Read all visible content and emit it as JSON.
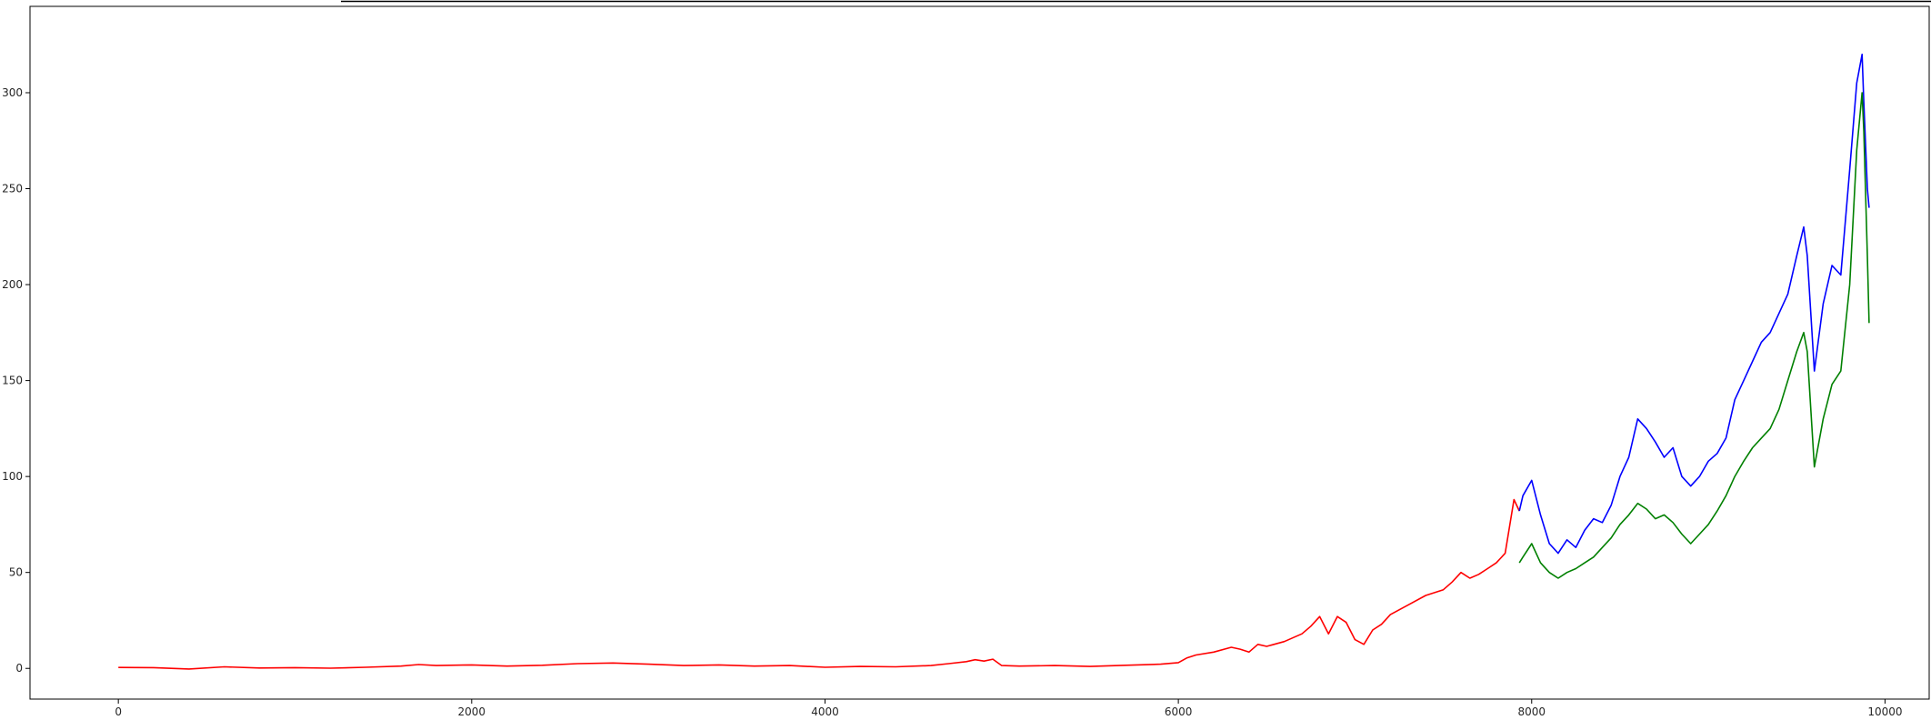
{
  "chart_data": {
    "type": "line",
    "title": "",
    "xlabel": "",
    "ylabel": "",
    "xlim": [
      -500,
      10250
    ],
    "ylim": [
      -16,
      345
    ],
    "xticks": [
      0,
      2000,
      4000,
      6000,
      8000,
      10000
    ],
    "yticks": [
      0,
      50,
      100,
      150,
      200,
      250,
      300
    ],
    "grid": false,
    "legend": "none",
    "series": [
      {
        "color": "#ff0000",
        "x": [
          0,
          200,
          400,
          600,
          800,
          1000,
          1200,
          1400,
          1600,
          1700,
          1800,
          2000,
          2200,
          2400,
          2600,
          2800,
          3000,
          3200,
          3400,
          3600,
          3800,
          4000,
          4200,
          4400,
          4600,
          4700,
          4800,
          4850,
          4900,
          4950,
          5000,
          5100,
          5300,
          5500,
          5700,
          5900,
          6000,
          6050,
          6100,
          6200,
          6300,
          6350,
          6400,
          6450,
          6500,
          6600,
          6700,
          6750,
          6800,
          6850,
          6900,
          6950,
          7000,
          7050,
          7100,
          7150,
          7200,
          7300,
          7400,
          7500,
          7550,
          7600,
          7650,
          7700,
          7750,
          7800,
          7850,
          7900,
          7930
        ],
        "values": [
          0.5,
          0.4,
          -0.3,
          0.8,
          0.2,
          0.4,
          0.1,
          0.6,
          1.2,
          2.0,
          1.5,
          1.8,
          1.2,
          1.6,
          2.5,
          2.8,
          2.2,
          1.5,
          1.8,
          1.2,
          1.5,
          0.6,
          1.0,
          0.8,
          1.5,
          2.5,
          3.5,
          4.5,
          3.8,
          4.8,
          1.5,
          1.2,
          1.5,
          1.0,
          1.6,
          2.2,
          3.0,
          5.5,
          7.0,
          8.5,
          11.0,
          10.0,
          8.5,
          12.5,
          11.5,
          14.0,
          18.0,
          22.0,
          27.0,
          18.0,
          27.0,
          24.0,
          15.0,
          12.5,
          20.0,
          23.0,
          28.0,
          33.0,
          38.0,
          41.0,
          45.0,
          50.0,
          47.0,
          49.0,
          52.0,
          55.0,
          60.0,
          88.0,
          82.0
        ]
      },
      {
        "color": "#0000ff",
        "x": [
          7930,
          7950,
          8000,
          8050,
          8100,
          8150,
          8200,
          8250,
          8300,
          8350,
          8400,
          8450,
          8500,
          8550,
          8600,
          8650,
          8700,
          8750,
          8800,
          8850,
          8900,
          8950,
          9000,
          9050,
          9100,
          9150,
          9200,
          9250,
          9300,
          9350,
          9400,
          9450,
          9500,
          9540,
          9560,
          9600,
          9650,
          9700,
          9750,
          9800,
          9840,
          9870,
          9880,
          9900,
          9910
        ],
        "values": [
          82.0,
          90.0,
          98.0,
          80.0,
          65.0,
          60.0,
          67.0,
          63.0,
          72.0,
          78.0,
          76.0,
          85.0,
          100.0,
          110.0,
          130.0,
          125.0,
          118.0,
          110.0,
          115.0,
          100.0,
          95.0,
          100.0,
          108.0,
          112.0,
          120.0,
          140.0,
          150.0,
          160.0,
          170.0,
          175.0,
          185.0,
          195.0,
          215.0,
          230.0,
          215.0,
          155.0,
          190.0,
          210.0,
          205.0,
          260.0,
          305.0,
          320.0,
          295.0,
          250.0,
          240.0
        ]
      },
      {
        "color": "#008000",
        "x": [
          7930,
          7950,
          8000,
          8050,
          8100,
          8150,
          8200,
          8250,
          8300,
          8350,
          8400,
          8450,
          8500,
          8550,
          8600,
          8650,
          8700,
          8750,
          8800,
          8850,
          8900,
          8950,
          9000,
          9050,
          9100,
          9150,
          9200,
          9250,
          9300,
          9350,
          9400,
          9450,
          9500,
          9540,
          9560,
          9600,
          9650,
          9700,
          9750,
          9800,
          9840,
          9870,
          9880,
          9900,
          9910
        ],
        "values": [
          55.0,
          58.0,
          65.0,
          55.0,
          50.0,
          47.0,
          50.0,
          52.0,
          55.0,
          58.0,
          63.0,
          68.0,
          75.0,
          80.0,
          86.0,
          83.0,
          78.0,
          80.0,
          76.0,
          70.0,
          65.0,
          70.0,
          75.0,
          82.0,
          90.0,
          100.0,
          108.0,
          115.0,
          120.0,
          125.0,
          135.0,
          150.0,
          165.0,
          175.0,
          165.0,
          105.0,
          130.0,
          148.0,
          155.0,
          200.0,
          270.0,
          300.0,
          280.0,
          215.0,
          180.0
        ]
      }
    ]
  }
}
